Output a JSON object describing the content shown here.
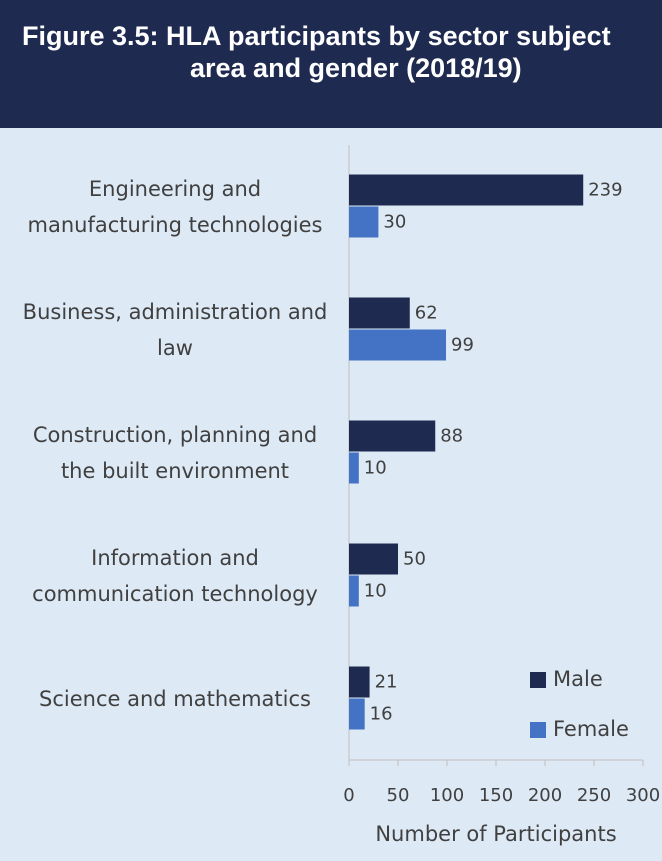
{
  "chart_data": {
    "type": "bar",
    "orientation": "horizontal",
    "title": "Figure 3.5: HLA participants by sector subject area and gender (2018/19)",
    "categories": [
      "Engineering and manufacturing technologies",
      "Business, administration and law",
      "Construction, planning and the built environment",
      "Information and communication technology",
      "Science and mathematics"
    ],
    "series": [
      {
        "name": "Male",
        "color": "#1f2a50",
        "values": [
          239,
          62,
          88,
          50,
          21
        ]
      },
      {
        "name": "Female",
        "color": "#4472c4",
        "values": [
          30,
          99,
          10,
          10,
          16
        ]
      }
    ],
    "xlabel": "Number of Participants",
    "xlim": [
      0,
      300
    ],
    "xticks": [
      0,
      50,
      100,
      150,
      200,
      250,
      300
    ],
    "grid": false,
    "legend": "lower right"
  }
}
